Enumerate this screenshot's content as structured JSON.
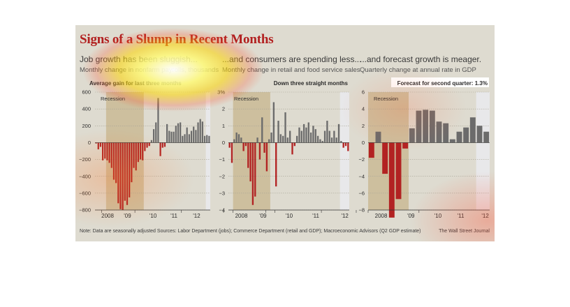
{
  "title": "Signs of a Slump in Recent Months",
  "footnote": "Note: Data are seasonally adjusted   Sources: Labor Department (jobs); Commerce Department (retail and GDP); Macroeconomic Advisors (Q2 GDP estimate)",
  "credit": "The Wall Street Journal",
  "colors": {
    "negative": "#b22222",
    "positive": "#6b6b6b",
    "recession": "#cdbf9e",
    "forecast": "#e8e8ea",
    "background": "#dedbd0"
  },
  "chart_data": [
    {
      "type": "bar",
      "headline": "Job growth has been sluggish...",
      "subtitle": "Monthly change in nonfarm payrolls, thousands",
      "annotation": "Average gain for last three months",
      "recession_label": "Recession",
      "ylim": [
        -800,
        600
      ],
      "yticks": [
        "600",
        "400",
        "200",
        "0",
        "−200",
        "−400",
        "−600",
        "−800"
      ],
      "xticks": [
        "2008",
        "'09",
        "'10",
        "'11",
        "'12"
      ],
      "values": [
        -10,
        -80,
        -50,
        -210,
        -190,
        -210,
        -240,
        -300,
        -440,
        -480,
        -720,
        -790,
        -800,
        -690,
        -740,
        -650,
        -470,
        -300,
        -330,
        -230,
        -200,
        -210,
        -100,
        -60,
        -40,
        30,
        160,
        240,
        530,
        -160,
        -60,
        -50,
        220,
        140,
        130,
        130,
        200,
        230,
        240,
        80,
        100,
        180,
        100,
        140,
        190,
        150,
        240,
        280,
        250,
        80,
        90,
        80
      ]
    },
    {
      "type": "bar",
      "headline": "...and consumers are spending less...",
      "subtitle": "Monthly change in retail and food service sales",
      "annotation": "Down three straight months",
      "recession_label": "Recession",
      "ylim": [
        -4,
        3
      ],
      "yticks": [
        "3%",
        "2",
        "1",
        "0",
        "−1",
        "−2",
        "−3",
        "−4"
      ],
      "xticks": [
        "2008",
        "'09",
        "'10",
        "'11",
        "'12"
      ],
      "values": [
        -0.3,
        -1.2,
        0.2,
        0.6,
        0.5,
        0.3,
        -0.5,
        -0.2,
        -1.5,
        -2.3,
        -3.7,
        -3.2,
        0.3,
        -1.0,
        1.5,
        -0.6,
        -1.7,
        0.2,
        0.6,
        2.4,
        -2.6,
        1.3,
        0.5,
        0.4,
        1.8,
        0.3,
        0.7,
        -0.7,
        -0.2,
        0.4,
        0.9,
        0.7,
        1.1,
        0.9,
        1.2,
        0.6,
        1.0,
        0.8,
        0.4,
        0.2,
        0.1,
        0.7,
        1.3,
        0.7,
        0.3,
        0.7,
        0.3,
        1.1,
        0.1,
        -0.3,
        -0.2,
        -0.5
      ]
    },
    {
      "type": "bar",
      "headline": "...and forecast growth is meager.",
      "subtitle": "Quarterly change at annual rate in GDP",
      "annotation": "Forecast for second quarter: 1.3%",
      "recession_label": "Recession",
      "ylim": [
        -8,
        6
      ],
      "yticks": [
        "6",
        "4",
        "2",
        "0",
        "−2",
        "−4",
        "−6",
        "−8"
      ],
      "xticks": [
        "2008",
        "'09",
        "'10",
        "'11",
        "'12"
      ],
      "values": [
        -1.8,
        1.3,
        -3.7,
        -8.9,
        -6.7,
        -0.7,
        1.7,
        3.8,
        3.9,
        3.8,
        2.5,
        2.3,
        0.4,
        1.3,
        1.8,
        3.0,
        2.0,
        1.3
      ]
    }
  ]
}
